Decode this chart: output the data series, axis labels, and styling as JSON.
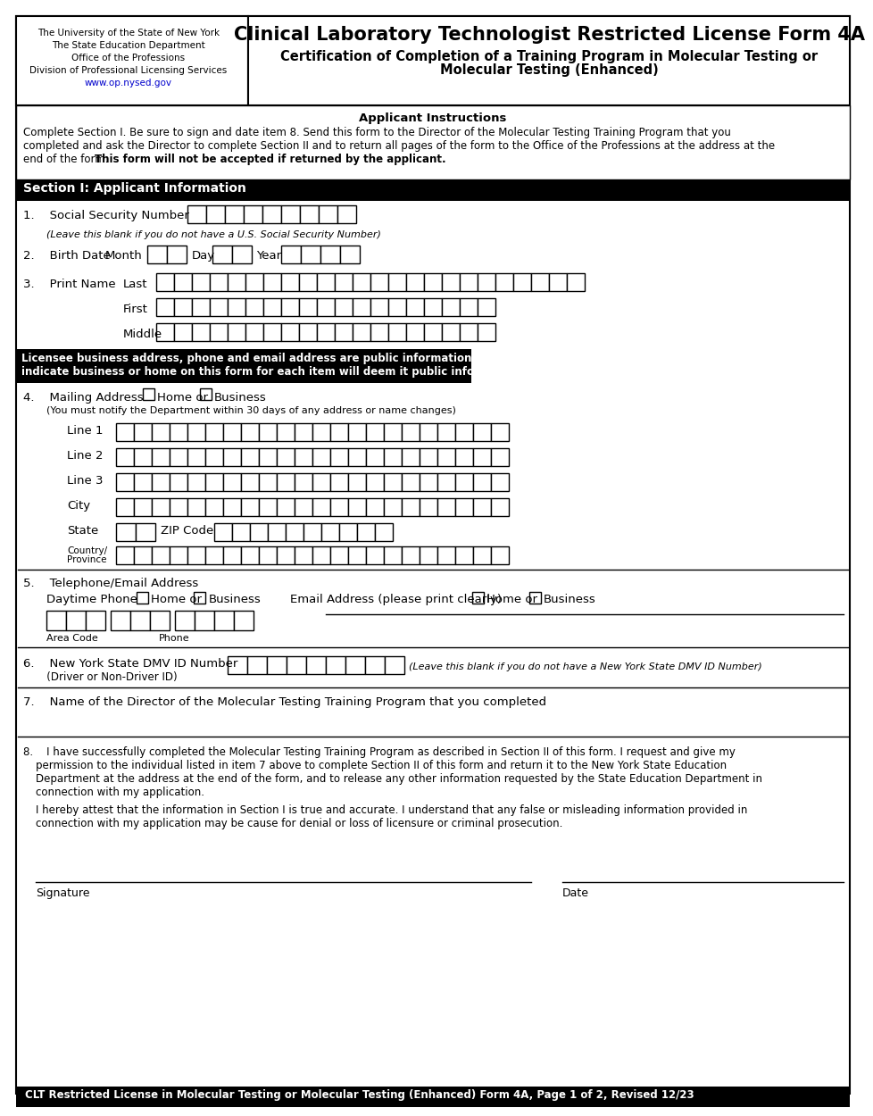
{
  "title_main": "Clinical Laboratory Technologist Restricted License Form 4A",
  "title_sub1": "Certification of Completion of a Training Program in Molecular Testing or",
  "title_sub2": "Molecular Testing (Enhanced)",
  "header_left_lines": [
    "The University of the State of New York",
    "The State Education Department",
    "Office of the Professions",
    "Division of Professional Licensing Services",
    "www.op.nysed.gov"
  ],
  "instructions_title": "Applicant Instructions",
  "instr1": "Complete Section I. Be sure to sign and date item 8. Send this form to the Director of the Molecular Testing Training Program that you",
  "instr2": "completed and ask the Director to complete Section II and to return all pages of the form to the Office of the Professions at the address at the",
  "instr3_plain": "end of the form. ",
  "instr3_bold": "This form will not be accepted if returned by the applicant.",
  "section1_title": "Section I: Applicant Information",
  "warn1": "Licensee business address, phone and email address are public information. Failure to",
  "warn2": "indicate business or home on this form for each item will deem it public information.",
  "footer_text": "CLT Restricted License in Molecular Testing or Molecular Testing (Enhanced) Form 4A, Page 1 of 2, Revised 12/23",
  "link_color": "#0000cc",
  "bg_color": "#ffffff"
}
